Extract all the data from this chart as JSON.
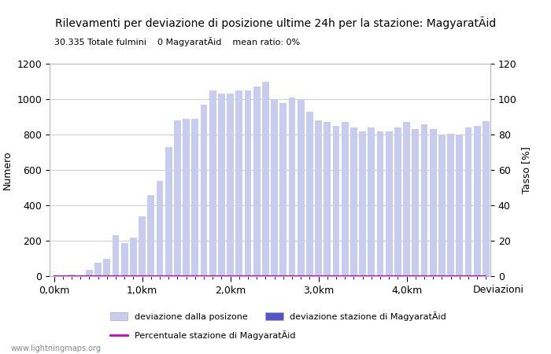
{
  "title": "Rilevamenti per deviazione di posizione ultime 24h per la stazione: MagyaratÃid",
  "subtitle": "30.335 Totale fulmini    0 MagyaratÃid    mean ratio: 0%",
  "ylabel_left": "Numero",
  "ylabel_right": "Tasso [%]",
  "xlabel": "Deviazioni",
  "watermark": "www.lightningmaps.org",
  "ylim_left": [
    0,
    1200
  ],
  "ylim_right": [
    0,
    120
  ],
  "yticks_left": [
    0,
    200,
    400,
    600,
    800,
    1000,
    1200
  ],
  "yticks_right": [
    0,
    20,
    40,
    60,
    80,
    100,
    120
  ],
  "bar_color": "#c8ccee",
  "bar_color_station": "#5555cc",
  "line_color": "#cc00cc",
  "xtick_positions": [
    0,
    10,
    20,
    30,
    40
  ],
  "xtick_labels": [
    "0,0km",
    "1,0km",
    "2,0km",
    "3,0km",
    "4,0km"
  ],
  "legend_labels": [
    "deviazione dalla posizone",
    "deviazione stazione di MagyaratÃid",
    "Percentuale stazione di MagyaratÃid"
  ],
  "bar_values": [
    0,
    0,
    10,
    0,
    35,
    75,
    100,
    230,
    185,
    220,
    340,
    460,
    540,
    730,
    880,
    890,
    890,
    970,
    1050,
    1030,
    1030,
    1050,
    1050,
    1070,
    1100,
    1000,
    980,
    1010,
    1000,
    930,
    880,
    870,
    850,
    870,
    840,
    820,
    840,
    820,
    820,
    840,
    870,
    830,
    860,
    830,
    800,
    805,
    800,
    840,
    850,
    875
  ],
  "station_bar_values": [
    0,
    0,
    0,
    0,
    0,
    0,
    0,
    0,
    0,
    0,
    0,
    0,
    0,
    0,
    0,
    0,
    0,
    0,
    0,
    0,
    0,
    0,
    0,
    0,
    0,
    0,
    0,
    0,
    0,
    0,
    0,
    0,
    0,
    0,
    0,
    0,
    0,
    0,
    0,
    0,
    0,
    0,
    0,
    0,
    0,
    0,
    0,
    0,
    0,
    0
  ],
  "line_values": [
    0,
    0,
    0,
    0,
    0,
    0,
    0,
    0,
    0,
    0,
    0,
    0,
    0,
    0,
    0,
    0,
    0,
    0,
    0,
    0,
    0,
    0,
    0,
    0,
    0,
    0,
    0,
    0,
    0,
    0,
    0,
    0,
    0,
    0,
    0,
    0,
    0,
    0,
    0,
    0,
    0,
    0,
    0,
    0,
    0,
    0,
    0,
    0,
    0,
    0
  ],
  "background_color": "#ffffff",
  "grid_color": "#cccccc"
}
